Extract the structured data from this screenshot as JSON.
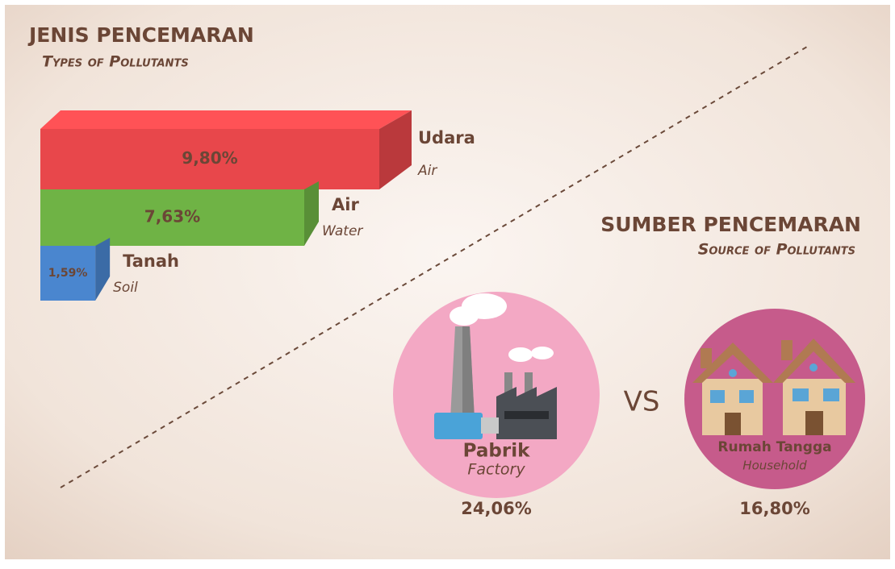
{
  "chart_data": {
    "type": "bar",
    "orientation": "horizontal",
    "title": "JENIS PENCEMARAN",
    "subtitle": "Types of Pollutants",
    "categories": [
      "Udara",
      "Air",
      "Tanah"
    ],
    "category_translations": [
      "Air",
      "Water",
      "Soil"
    ],
    "values": [
      9.8,
      7.63,
      1.59
    ],
    "value_labels": [
      "9,80%",
      "7,63%",
      "1,59%"
    ],
    "colors": [
      "#e8474b",
      "#6fb345",
      "#4a86cf"
    ]
  },
  "sources": {
    "title": "SUMBER PENCEMARAN",
    "subtitle": "Source of Pollutants",
    "vs": "VS",
    "items": [
      {
        "label": "Pabrik",
        "translation": "Factory",
        "value_label": "24,06%"
      },
      {
        "label": "Rumah Tangga",
        "translation": "Household",
        "value_label": "16,80%"
      }
    ]
  }
}
